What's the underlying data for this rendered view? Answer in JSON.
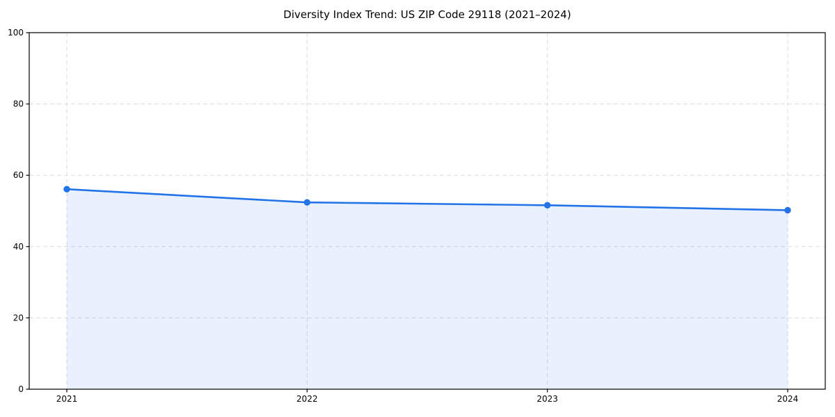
{
  "chart_data": {
    "type": "line",
    "title": "Diversity Index Trend: US ZIP Code 29118 (2021–2024)",
    "x": [
      "2021",
      "2022",
      "2023",
      "2024"
    ],
    "series": [
      {
        "name": "Diversity Index",
        "values": [
          56.1,
          52.4,
          51.6,
          50.2
        ],
        "marker": "circle",
        "area_fill": true
      }
    ],
    "xlabel": "",
    "ylabel": "",
    "ylim": [
      0,
      100
    ],
    "y_ticks": [
      0,
      20,
      40,
      60,
      80,
      100
    ],
    "grid": true,
    "grid_style": "dashed",
    "legend": "none",
    "colors": {
      "line": "#2272e8",
      "marker": "#2272e8",
      "area_fill": "rgba(34,114,232,0.10)",
      "grid": "#dcdcdc",
      "spine": "#000000",
      "plot_background": "#ffffff",
      "figure_background": "#ffffff"
    }
  }
}
